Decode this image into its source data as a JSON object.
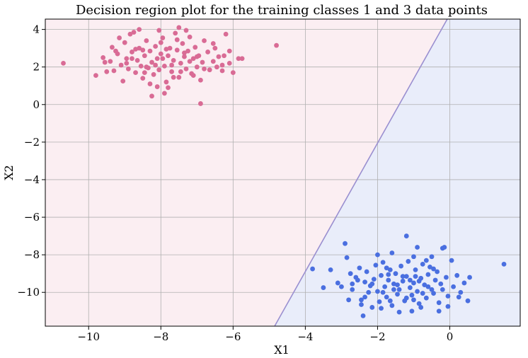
{
  "chart_data": {
    "type": "scatter",
    "title": "Decision region plot for the training classes 1 and 3 data points",
    "xlabel": "X1",
    "ylabel": "X2",
    "xlim": [
      -11.2,
      1.95
    ],
    "ylim": [
      -11.8,
      4.55
    ],
    "xticks": [
      -10,
      -8,
      -6,
      -4,
      -2,
      0
    ],
    "yticks": [
      4,
      2,
      0,
      -2,
      -4,
      -6,
      -8,
      -10
    ],
    "xtick_labels": [
      "−10",
      "−8",
      "−6",
      "−4",
      "−2",
      "0"
    ],
    "ytick_labels": [
      "4",
      "2",
      "0",
      "−2",
      "−4",
      "−6",
      "−8",
      "−10"
    ],
    "grid": true,
    "decision_boundary": {
      "points": [
        [
          -4.85,
          -11.8
        ],
        [
          -0.07,
          4.55
        ]
      ],
      "color": "#9a8fd0"
    },
    "regions": [
      {
        "class": "1",
        "color": "#fbeef2"
      },
      {
        "class": "3",
        "color": "#e9edfa"
      }
    ],
    "series": [
      {
        "class": "1",
        "color": "#d96b95",
        "points": [
          [
            -10.7,
            2.2
          ],
          [
            -9.8,
            1.55
          ],
          [
            -9.6,
            2.5
          ],
          [
            -9.5,
            1.75
          ],
          [
            -9.4,
            2.3
          ],
          [
            -9.35,
            3.05
          ],
          [
            -9.3,
            1.8
          ],
          [
            -9.2,
            2.7
          ],
          [
            -9.1,
            2.1
          ],
          [
            -9.05,
            1.25
          ],
          [
            -9.0,
            3.3
          ],
          [
            -8.95,
            2.45
          ],
          [
            -8.9,
            1.9
          ],
          [
            -8.85,
            3.75
          ],
          [
            -8.8,
            2.8
          ],
          [
            -8.7,
            1.7
          ],
          [
            -8.65,
            2.35
          ],
          [
            -8.6,
            3.0
          ],
          [
            -8.55,
            2.05
          ],
          [
            -8.5,
            1.4
          ],
          [
            -8.45,
            2.6
          ],
          [
            -8.4,
            3.4
          ],
          [
            -8.35,
            1.95
          ],
          [
            -8.3,
            2.85
          ],
          [
            -8.25,
            2.25
          ],
          [
            -8.2,
            1.6
          ],
          [
            -8.15,
            3.1
          ],
          [
            -8.1,
            2.45
          ],
          [
            -8.05,
            1.85
          ],
          [
            -8.0,
            2.7
          ],
          [
            -7.95,
            3.55
          ],
          [
            -7.9,
            2.05
          ],
          [
            -7.85,
            1.2
          ],
          [
            -7.8,
            2.6
          ],
          [
            -7.75,
            3.0
          ],
          [
            -7.7,
            1.75
          ],
          [
            -7.65,
            2.35
          ],
          [
            -7.6,
            3.8
          ],
          [
            -7.55,
            2.9
          ],
          [
            -7.5,
            1.45
          ],
          [
            -7.45,
            2.2
          ],
          [
            -7.4,
            3.25
          ],
          [
            -7.35,
            2.55
          ],
          [
            -7.3,
            1.9
          ],
          [
            -7.25,
            2.85
          ],
          [
            -7.2,
            3.6
          ],
          [
            -7.15,
            1.65
          ],
          [
            -7.1,
            2.45
          ],
          [
            -7.05,
            3.05
          ],
          [
            -7.0,
            2.0
          ],
          [
            -6.95,
            2.6
          ],
          [
            -6.9,
            1.3
          ],
          [
            -6.85,
            2.25
          ],
          [
            -6.8,
            3.4
          ],
          [
            -6.7,
            2.8
          ],
          [
            -6.65,
            1.85
          ],
          [
            -6.55,
            2.3
          ],
          [
            -6.5,
            3.0
          ],
          [
            -6.4,
            2.55
          ],
          [
            -6.3,
            1.8
          ],
          [
            -6.2,
            3.75
          ],
          [
            -6.1,
            2.2
          ],
          [
            -6.0,
            1.7
          ],
          [
            -5.85,
            2.45
          ],
          [
            -5.75,
            2.45
          ],
          [
            -4.8,
            3.15
          ],
          [
            -8.25,
            0.45
          ],
          [
            -6.9,
            0.05
          ],
          [
            -7.8,
            0.9
          ],
          [
            -8.1,
            0.95
          ],
          [
            -8.6,
            4.0
          ],
          [
            -7.5,
            4.1
          ],
          [
            -9.15,
            3.55
          ],
          [
            -8.75,
            3.85
          ],
          [
            -8.05,
            3.95
          ],
          [
            -7.3,
            3.95
          ],
          [
            -6.55,
            3.25
          ],
          [
            -6.25,
            2.6
          ],
          [
            -7.9,
            0.6
          ],
          [
            -8.3,
            1.1
          ],
          [
            -9.25,
            2.85
          ],
          [
            -8.95,
            2.2
          ],
          [
            -8.5,
            2.9
          ],
          [
            -7.7,
            2.1
          ],
          [
            -7.2,
            2.3
          ],
          [
            -7.65,
            1.45
          ],
          [
            -8.15,
            2.1
          ],
          [
            -8.4,
            2.0
          ],
          [
            -7.95,
            2.45
          ],
          [
            -7.35,
            2.75
          ],
          [
            -6.8,
            1.9
          ],
          [
            -7.1,
            1.55
          ],
          [
            -8.7,
            2.95
          ],
          [
            -9.55,
            2.25
          ],
          [
            -6.45,
            2.0
          ],
          [
            -6.1,
            2.85
          ],
          [
            -7.55,
            3.45
          ],
          [
            -8.0,
            3.3
          ],
          [
            -8.8,
            2.45
          ],
          [
            -7.0,
            2.55
          ],
          [
            -6.3,
            2.1
          ],
          [
            -7.85,
            2.95
          ],
          [
            -8.45,
            1.7
          ],
          [
            -7.45,
            1.75
          ]
        ]
      },
      {
        "class": "3",
        "color": "#4a6fe0",
        "points": [
          [
            -3.8,
            -8.75
          ],
          [
            -3.5,
            -9.75
          ],
          [
            -3.3,
            -8.8
          ],
          [
            -3.1,
            -9.5
          ],
          [
            -3.0,
            -9.7
          ],
          [
            -2.9,
            -7.4
          ],
          [
            -2.85,
            -8.15
          ],
          [
            -2.75,
            -9.0
          ],
          [
            -2.7,
            -9.85
          ],
          [
            -2.6,
            -9.2
          ],
          [
            -2.5,
            -8.7
          ],
          [
            -2.45,
            -10.4
          ],
          [
            -2.4,
            -11.25
          ],
          [
            -2.35,
            -9.45
          ],
          [
            -2.3,
            -8.9
          ],
          [
            -2.25,
            -10.0
          ],
          [
            -2.2,
            -9.65
          ],
          [
            -2.15,
            -10.8
          ],
          [
            -2.1,
            -9.3
          ],
          [
            -2.05,
            -8.55
          ],
          [
            -2.0,
            -9.95
          ],
          [
            -1.95,
            -10.5
          ],
          [
            -1.9,
            -9.1
          ],
          [
            -1.85,
            -8.4
          ],
          [
            -1.8,
            -9.7
          ],
          [
            -1.75,
            -10.25
          ],
          [
            -1.7,
            -9.35
          ],
          [
            -1.65,
            -8.8
          ],
          [
            -1.6,
            -10.7
          ],
          [
            -1.55,
            -9.55
          ],
          [
            -1.5,
            -9.0
          ],
          [
            -1.45,
            -10.1
          ],
          [
            -1.4,
            -9.85
          ],
          [
            -1.35,
            -8.6
          ],
          [
            -1.3,
            -9.4
          ],
          [
            -1.25,
            -10.45
          ],
          [
            -1.2,
            -9.15
          ],
          [
            -1.15,
            -8.35
          ],
          [
            -1.1,
            -9.75
          ],
          [
            -1.05,
            -10.15
          ],
          [
            -1.0,
            -9.5
          ],
          [
            -0.95,
            -8.8
          ],
          [
            -0.9,
            -9.95
          ],
          [
            -0.85,
            -10.6
          ],
          [
            -0.8,
            -9.25
          ],
          [
            -0.75,
            -8.5
          ],
          [
            -0.7,
            -9.6
          ],
          [
            -0.65,
            -10.3
          ],
          [
            -0.6,
            -9.05
          ],
          [
            -0.55,
            -8.65
          ],
          [
            -0.5,
            -9.85
          ],
          [
            -0.45,
            -10.05
          ],
          [
            -0.4,
            -9.35
          ],
          [
            -0.35,
            -8.9
          ],
          [
            -0.3,
            -10.55
          ],
          [
            -0.25,
            -9.55
          ],
          [
            -0.2,
            -7.65
          ],
          [
            -0.15,
            -7.6
          ],
          [
            -0.1,
            -9.2
          ],
          [
            -0.05,
            -10.2
          ],
          [
            0.05,
            -8.3
          ],
          [
            0.1,
            -9.7
          ],
          [
            0.2,
            -9.1
          ],
          [
            0.3,
            -10.0
          ],
          [
            0.4,
            -9.5
          ],
          [
            0.5,
            -10.45
          ],
          [
            0.55,
            -9.2
          ],
          [
            1.5,
            -8.5
          ],
          [
            -1.2,
            -7.0
          ],
          [
            -0.9,
            -7.6
          ],
          [
            -0.5,
            -8.1
          ],
          [
            -1.6,
            -7.9
          ],
          [
            -2.0,
            -8.0
          ],
          [
            -1.0,
            -8.1
          ],
          [
            -0.65,
            -8.3
          ],
          [
            -1.4,
            -11.05
          ],
          [
            -1.9,
            -10.85
          ],
          [
            -2.45,
            -10.65
          ],
          [
            -0.3,
            -11.0
          ],
          [
            -0.05,
            -10.75
          ],
          [
            -2.8,
            -10.4
          ],
          [
            -1.05,
            -11.0
          ],
          [
            -1.7,
            -9.05
          ],
          [
            -1.3,
            -9.15
          ],
          [
            -1.1,
            -9.35
          ],
          [
            -0.85,
            -9.4
          ],
          [
            -1.55,
            -9.85
          ],
          [
            -2.15,
            -9.55
          ],
          [
            -0.6,
            -9.7
          ],
          [
            -1.85,
            -10.0
          ],
          [
            -1.2,
            -10.3
          ],
          [
            -0.75,
            -10.05
          ],
          [
            -2.35,
            -10.25
          ],
          [
            -1.45,
            -9.6
          ],
          [
            -0.95,
            -9.15
          ],
          [
            -1.75,
            -8.7
          ],
          [
            -2.55,
            -9.35
          ],
          [
            -0.45,
            -8.75
          ],
          [
            -1.0,
            -10.4
          ],
          [
            -0.2,
            -9.85
          ],
          [
            -1.65,
            -10.45
          ],
          [
            -2.7,
            -9.55
          ],
          [
            -0.8,
            -10.8
          ],
          [
            0.25,
            -10.25
          ]
        ]
      }
    ]
  }
}
